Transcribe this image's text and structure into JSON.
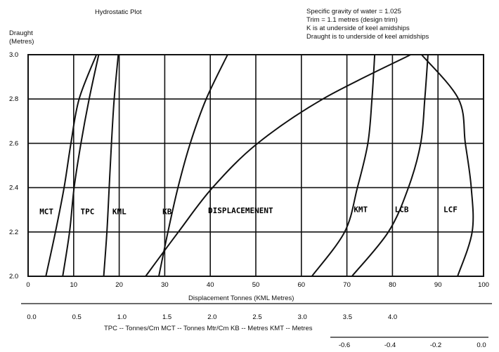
{
  "title": "Hydrostatic Plot",
  "notes": [
    "Specific gravity of water = 1.025",
    "Trim = 1.1 metres (design trim)",
    "K is at underside of keel amidships",
    "Draught is to underside of keel amidships"
  ],
  "y_axis_title": [
    "Draught",
    "(Metres)"
  ],
  "x_axis_title": "Displacement Tonnes (KML Metres)",
  "secondary_axis_caption": "TPC -- Tonnes/Cm  MCT -- Tonnes Mtr/Cm  KB -- Metres  KMT -- Metres",
  "chart_data": {
    "type": "line",
    "title": "Hydrostatic Plot",
    "ylabel": "Draught (Metres)",
    "xlabel": "Displacement Tonnes (KML Metres)",
    "ylim": [
      2.0,
      3.0
    ],
    "xlim": [
      0,
      100
    ],
    "y_ticks": [
      "2.0",
      "2.2",
      "2.4",
      "2.6",
      "2.8",
      "3.0"
    ],
    "x_ticks": [
      "0",
      "10",
      "20",
      "30",
      "40",
      "50",
      "60",
      "70",
      "80",
      "90",
      "100"
    ],
    "secondary_x_ticks": [
      "0.0",
      "0.5",
      "1.0",
      "1.5",
      "2.0",
      "2.5",
      "3.0",
      "3.5",
      "4.0"
    ],
    "secondary_x_range": [
      0,
      5
    ],
    "tertiary_x_ticks": [
      "-0.6",
      "-0.4",
      "-0.2",
      "0.0"
    ],
    "tertiary_x_range": [
      -0.6,
      0.0
    ],
    "grid": true,
    "series": [
      {
        "name": "MCT",
        "axis": "primary",
        "points": [
          [
            3.9,
            2.0
          ],
          [
            6.0,
            2.2
          ],
          [
            7.9,
            2.4
          ],
          [
            9.4,
            2.6
          ],
          [
            11.2,
            2.8
          ],
          [
            15.0,
            3.0
          ]
        ]
      },
      {
        "name": "TPC",
        "axis": "primary",
        "points": [
          [
            7.6,
            2.0
          ],
          [
            9.1,
            2.2
          ],
          [
            10.1,
            2.4
          ],
          [
            11.6,
            2.6
          ],
          [
            13.4,
            2.8
          ],
          [
            15.5,
            3.0
          ]
        ]
      },
      {
        "name": "KML",
        "axis": "primary",
        "points": [
          [
            16.6,
            2.0
          ],
          [
            17.3,
            2.2
          ],
          [
            17.8,
            2.4
          ],
          [
            18.3,
            2.6
          ],
          [
            18.9,
            2.8
          ],
          [
            19.8,
            3.0
          ]
        ]
      },
      {
        "name": "KB",
        "axis": "primary",
        "points": [
          [
            28.7,
            2.0
          ],
          [
            30.7,
            2.2
          ],
          [
            32.9,
            2.4
          ],
          [
            35.6,
            2.6
          ],
          [
            39.1,
            2.8
          ],
          [
            43.8,
            3.0
          ]
        ]
      },
      {
        "name": "DISPLACEMENT",
        "axis": "primary",
        "points": [
          [
            25.8,
            2.0
          ],
          [
            33.0,
            2.2
          ],
          [
            40.5,
            2.4
          ],
          [
            50.4,
            2.6
          ],
          [
            64.7,
            2.8
          ],
          [
            84.0,
            3.0
          ]
        ]
      },
      {
        "name": "KMT",
        "axis": "primary",
        "points": [
          [
            62.3,
            2.0
          ],
          [
            69.5,
            2.2
          ],
          [
            72.3,
            2.4
          ],
          [
            74.6,
            2.6
          ],
          [
            75.5,
            2.8
          ],
          [
            76.1,
            3.0
          ]
        ]
      },
      {
        "name": "LCB",
        "axis": "primary",
        "points": [
          [
            71.1,
            2.0
          ],
          [
            79.1,
            2.2
          ],
          [
            83.5,
            2.4
          ],
          [
            86.2,
            2.6
          ],
          [
            87.1,
            2.8
          ],
          [
            87.8,
            3.0
          ]
        ]
      },
      {
        "name": "LCF",
        "axis": "primary",
        "points": [
          [
            94.3,
            2.0
          ],
          [
            97.5,
            2.2
          ],
          [
            97.3,
            2.4
          ],
          [
            96.0,
            2.6
          ],
          [
            94.5,
            2.8
          ],
          [
            86.4,
            3.0
          ]
        ]
      }
    ],
    "curve_labels": [
      {
        "text": "MCT",
        "x": 2.5,
        "y": 2.28
      },
      {
        "text": "TPC",
        "x": 11.5,
        "y": 2.28
      },
      {
        "text": "KML",
        "x": 18.5,
        "y": 2.28
      },
      {
        "text": "KB",
        "x": 29.5,
        "y": 2.28
      },
      {
        "text": "DISPLACEMENENT",
        "x": 39.5,
        "y": 2.285
      },
      {
        "text": "KMT",
        "x": 71.5,
        "y": 2.29
      },
      {
        "text": "LCB",
        "x": 80.5,
        "y": 2.29
      },
      {
        "text": "LCF",
        "x": 91.2,
        "y": 2.29
      }
    ]
  },
  "colors": {
    "ink": "#111111",
    "background": "#ffffff"
  }
}
